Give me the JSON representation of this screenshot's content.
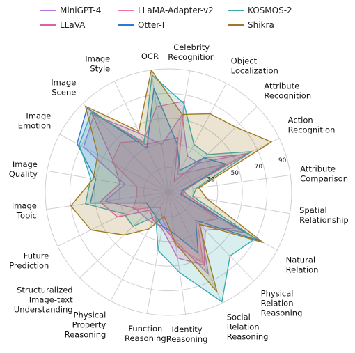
{
  "chart_data": {
    "type": "radar",
    "axes": [
      "Celebrity Recognition",
      "Object Localization",
      "Attribute Recognition",
      "Action Recognition",
      "Attribute Comparison",
      "Spatial Relationship",
      "Natural Relation",
      "Physical Relation Reasoning",
      "Social Relation Reasoning",
      "Identity Reasoning",
      "Function Reasoning",
      "Physical Property Reasoning",
      "Structuralized Image-text Understanding",
      "Future Prediction",
      "Image Topic",
      "Image Quality",
      "Image Emotion",
      "Image Scene",
      "Image Style",
      "OCR"
    ],
    "rlim": [
      0,
      100
    ],
    "ticks": [
      30,
      50,
      70,
      90
    ],
    "series": [
      {
        "name": "MiniGPT-4",
        "color": "#b574d6",
        "values": [
          64,
          33,
          34,
          72,
          12,
          12,
          70,
          37,
          74,
          40,
          28,
          28,
          28,
          30,
          52,
          36,
          78,
          87,
          53,
          39
        ]
      },
      {
        "name": "LLaVA",
        "color": "#e060a8",
        "values": [
          45,
          10,
          40,
          70,
          12,
          16,
          62,
          43,
          66,
          54,
          30,
          26,
          21,
          46,
          56,
          40,
          50,
          90,
          43,
          42
        ]
      },
      {
        "name": "LLaMA-Adapter-v2",
        "color": "#f06fa6",
        "values": [
          75,
          16,
          24,
          52,
          14,
          12,
          46,
          34,
          64,
          44,
          24,
          14,
          18,
          32,
          26,
          26,
          52,
          56,
          46,
          70
        ]
      },
      {
        "name": "Otter-I",
        "color": "#2c7bcd",
        "values": [
          40,
          20,
          40,
          52,
          12,
          10,
          84,
          32,
          55,
          34,
          28,
          22,
          20,
          20,
          64,
          60,
          84,
          95,
          40,
          85
        ]
      },
      {
        "name": "KOSMOS-2",
        "color": "#3aaab0",
        "values": [
          73,
          44,
          44,
          75,
          23,
          20,
          80,
          72,
          99,
          66,
          48,
          22,
          40,
          40,
          68,
          64,
          82,
          90,
          45,
          96
        ]
      },
      {
        "name": "Shikra",
        "color": "#a07a22",
        "values": [
          64,
          72,
          76,
          93,
          25,
          32,
          87,
          36,
          90,
          42,
          20,
          34,
          50,
          70,
          80,
          62,
          65,
          97,
          55,
          100
        ]
      }
    ]
  }
}
